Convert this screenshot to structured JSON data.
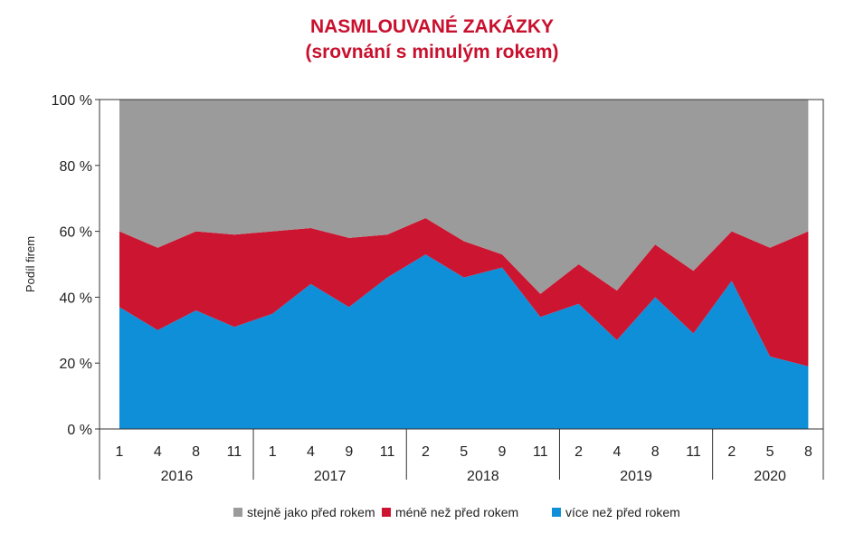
{
  "chart_data": {
    "type": "area",
    "stacked": true,
    "title": "NASMLOUVANÉ ZAKÁZKY",
    "subtitle": "(srovnání s minulým rokem)",
    "ylabel": "Podíl firem",
    "ylim": [
      0,
      100
    ],
    "yticks": [
      "0 %",
      "20 %",
      "40 %",
      "60 %",
      "80 %",
      "100 %"
    ],
    "months": [
      "1",
      "4",
      "8",
      "11",
      "1",
      "4",
      "9",
      "11",
      "2",
      "5",
      "9",
      "11",
      "2",
      "4",
      "8",
      "11",
      "2",
      "5",
      "8"
    ],
    "years": [
      {
        "label": "2016",
        "count": 4
      },
      {
        "label": "2017",
        "count": 4
      },
      {
        "label": "2018",
        "count": 4
      },
      {
        "label": "2019",
        "count": 4
      },
      {
        "label": "2020",
        "count": 3
      }
    ],
    "series": [
      {
        "name": "více než před rokem",
        "color": "#0f8fd8",
        "values": [
          37,
          30,
          36,
          31,
          35,
          44,
          37,
          46,
          53,
          46,
          49,
          34,
          38,
          27,
          40,
          29,
          45,
          22,
          19
        ]
      },
      {
        "name": "méně než před rokem",
        "color": "#cc1530",
        "values": [
          23,
          25,
          24,
          28,
          25,
          17,
          21,
          13,
          11,
          11,
          4,
          7,
          12,
          15,
          16,
          19,
          15,
          33,
          41
        ]
      },
      {
        "name": "stejně jako před rokem",
        "color": "#9b9b9b",
        "values": [
          40,
          45,
          40,
          41,
          40,
          39,
          42,
          41,
          36,
          43,
          47,
          59,
          50,
          58,
          44,
          52,
          40,
          45,
          40
        ]
      }
    ],
    "legend_order": [
      "stejně jako před rokem",
      "méně než před rokem",
      "více než před rokem"
    ],
    "legend_position": "bottom",
    "grid": false
  }
}
